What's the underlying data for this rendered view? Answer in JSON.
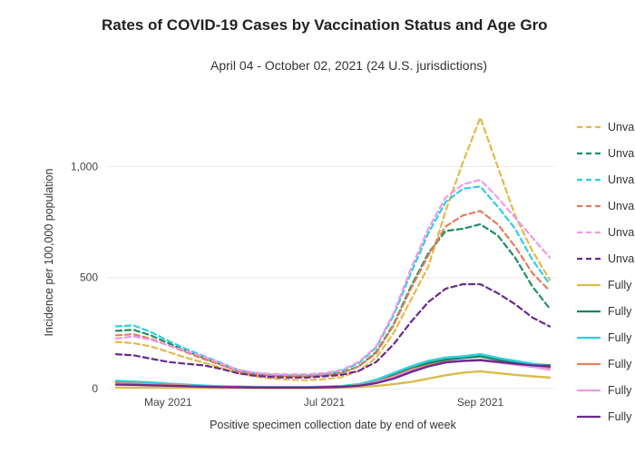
{
  "chart_data": {
    "type": "line",
    "title": "Rates of COVID-19 Cases by Vaccination Status and Age Gro",
    "subtitle": "April 04 - October 02, 2021 (24 U.S. jurisdictions)",
    "xlabel": "Positive specimen collection date by end of week",
    "ylabel": "Incidence per 100,000 population",
    "ylim": [
      0,
      1300
    ],
    "yticks": [
      {
        "value": 0,
        "label": "0"
      },
      {
        "value": 500,
        "label": "500"
      },
      {
        "value": 1000,
        "label": "1,000"
      }
    ],
    "x": [
      "Apr 10",
      "Apr 17",
      "Apr 24",
      "May 01",
      "May 08",
      "May 15",
      "May 22",
      "May 29",
      "Jun 05",
      "Jun 12",
      "Jun 19",
      "Jun 26",
      "Jul 03",
      "Jul 10",
      "Jul 17",
      "Jul 24",
      "Jul 31",
      "Aug 07",
      "Aug 14",
      "Aug 21",
      "Aug 28",
      "Sep 04",
      "Sep 11",
      "Sep 18",
      "Sep 25",
      "Oct 02"
    ],
    "xticks": [
      {
        "index": 3,
        "label": "May 2021"
      },
      {
        "index": 12,
        "label": "Jul 2021"
      },
      {
        "index": 21,
        "label": "Sep 2021"
      }
    ],
    "series": [
      {
        "name": "Unva",
        "style": "dashed",
        "color": "#e2b94a",
        "values": [
          210,
          205,
          190,
          165,
          140,
          118,
          95,
          70,
          55,
          45,
          40,
          38,
          42,
          52,
          80,
          140,
          250,
          400,
          550,
          800,
          1020,
          1220,
          1000,
          780,
          620,
          490
        ]
      },
      {
        "name": "Unva",
        "style": "dashed",
        "color": "#1f8f63",
        "values": [
          260,
          265,
          240,
          205,
          170,
          140,
          110,
          80,
          65,
          58,
          55,
          55,
          60,
          72,
          100,
          165,
          290,
          460,
          610,
          710,
          720,
          740,
          690,
          590,
          460,
          360
        ]
      },
      {
        "name": "Unva",
        "style": "dashed",
        "color": "#35cce0",
        "values": [
          280,
          285,
          255,
          215,
          180,
          148,
          118,
          85,
          70,
          62,
          60,
          60,
          66,
          80,
          115,
          185,
          330,
          520,
          700,
          840,
          900,
          910,
          820,
          720,
          580,
          470
        ]
      },
      {
        "name": "Unva",
        "style": "dashed",
        "color": "#e47d5a",
        "values": [
          240,
          245,
          225,
          195,
          165,
          135,
          108,
          80,
          65,
          58,
          55,
          55,
          60,
          70,
          100,
          160,
          285,
          450,
          600,
          730,
          780,
          800,
          740,
          640,
          520,
          440
        ]
      },
      {
        "name": "Unva",
        "style": "dashed",
        "color": "#ef9ae8",
        "values": [
          225,
          235,
          220,
          195,
          170,
          145,
          115,
          85,
          72,
          66,
          64,
          65,
          70,
          84,
          120,
          190,
          340,
          540,
          720,
          860,
          920,
          940,
          860,
          770,
          680,
          590
        ]
      },
      {
        "name": "Unva",
        "style": "dashed",
        "color": "#6b2a8c",
        "values": [
          155,
          150,
          135,
          120,
          112,
          105,
          90,
          70,
          58,
          52,
          50,
          50,
          55,
          62,
          80,
          120,
          200,
          300,
          390,
          450,
          470,
          470,
          430,
          380,
          320,
          280
        ]
      },
      {
        "name": "Fully",
        "style": "solid",
        "color": "#d9bd4c",
        "values": [
          5,
          5,
          5,
          4,
          4,
          3,
          3,
          3,
          3,
          2,
          2,
          2,
          3,
          5,
          8,
          12,
          20,
          30,
          45,
          60,
          72,
          78,
          70,
          62,
          55,
          50
        ]
      },
      {
        "name": "Fully",
        "style": "solid",
        "color": "#16865d",
        "values": [
          30,
          28,
          24,
          20,
          16,
          12,
          10,
          8,
          7,
          6,
          6,
          6,
          8,
          10,
          18,
          35,
          60,
          90,
          115,
          130,
          138,
          145,
          130,
          120,
          110,
          105
        ]
      },
      {
        "name": "Fully",
        "style": "solid",
        "color": "#2ccfdf",
        "values": [
          35,
          32,
          28,
          22,
          18,
          14,
          11,
          9,
          8,
          7,
          7,
          7,
          9,
          12,
          20,
          40,
          70,
          100,
          125,
          140,
          145,
          155,
          138,
          125,
          112,
          100
        ]
      },
      {
        "name": "Fully",
        "style": "solid",
        "color": "#e4815e",
        "values": [
          25,
          23,
          20,
          17,
          14,
          11,
          9,
          7,
          6,
          5,
          5,
          5,
          7,
          9,
          15,
          30,
          55,
          85,
          105,
          120,
          125,
          130,
          120,
          110,
          100,
          95
        ]
      },
      {
        "name": "Fully",
        "style": "solid",
        "color": "#ef9ae6",
        "values": [
          20,
          19,
          17,
          14,
          12,
          10,
          8,
          6,
          5,
          5,
          5,
          5,
          6,
          8,
          14,
          28,
          50,
          80,
          100,
          118,
          125,
          128,
          118,
          108,
          98,
          85
        ]
      },
      {
        "name": "Fully",
        "style": "solid",
        "color": "#6a2c8c",
        "values": [
          18,
          17,
          15,
          13,
          11,
          9,
          7,
          6,
          5,
          5,
          5,
          5,
          6,
          8,
          13,
          25,
          45,
          75,
          100,
          118,
          125,
          128,
          120,
          112,
          105,
          100
        ]
      }
    ]
  }
}
